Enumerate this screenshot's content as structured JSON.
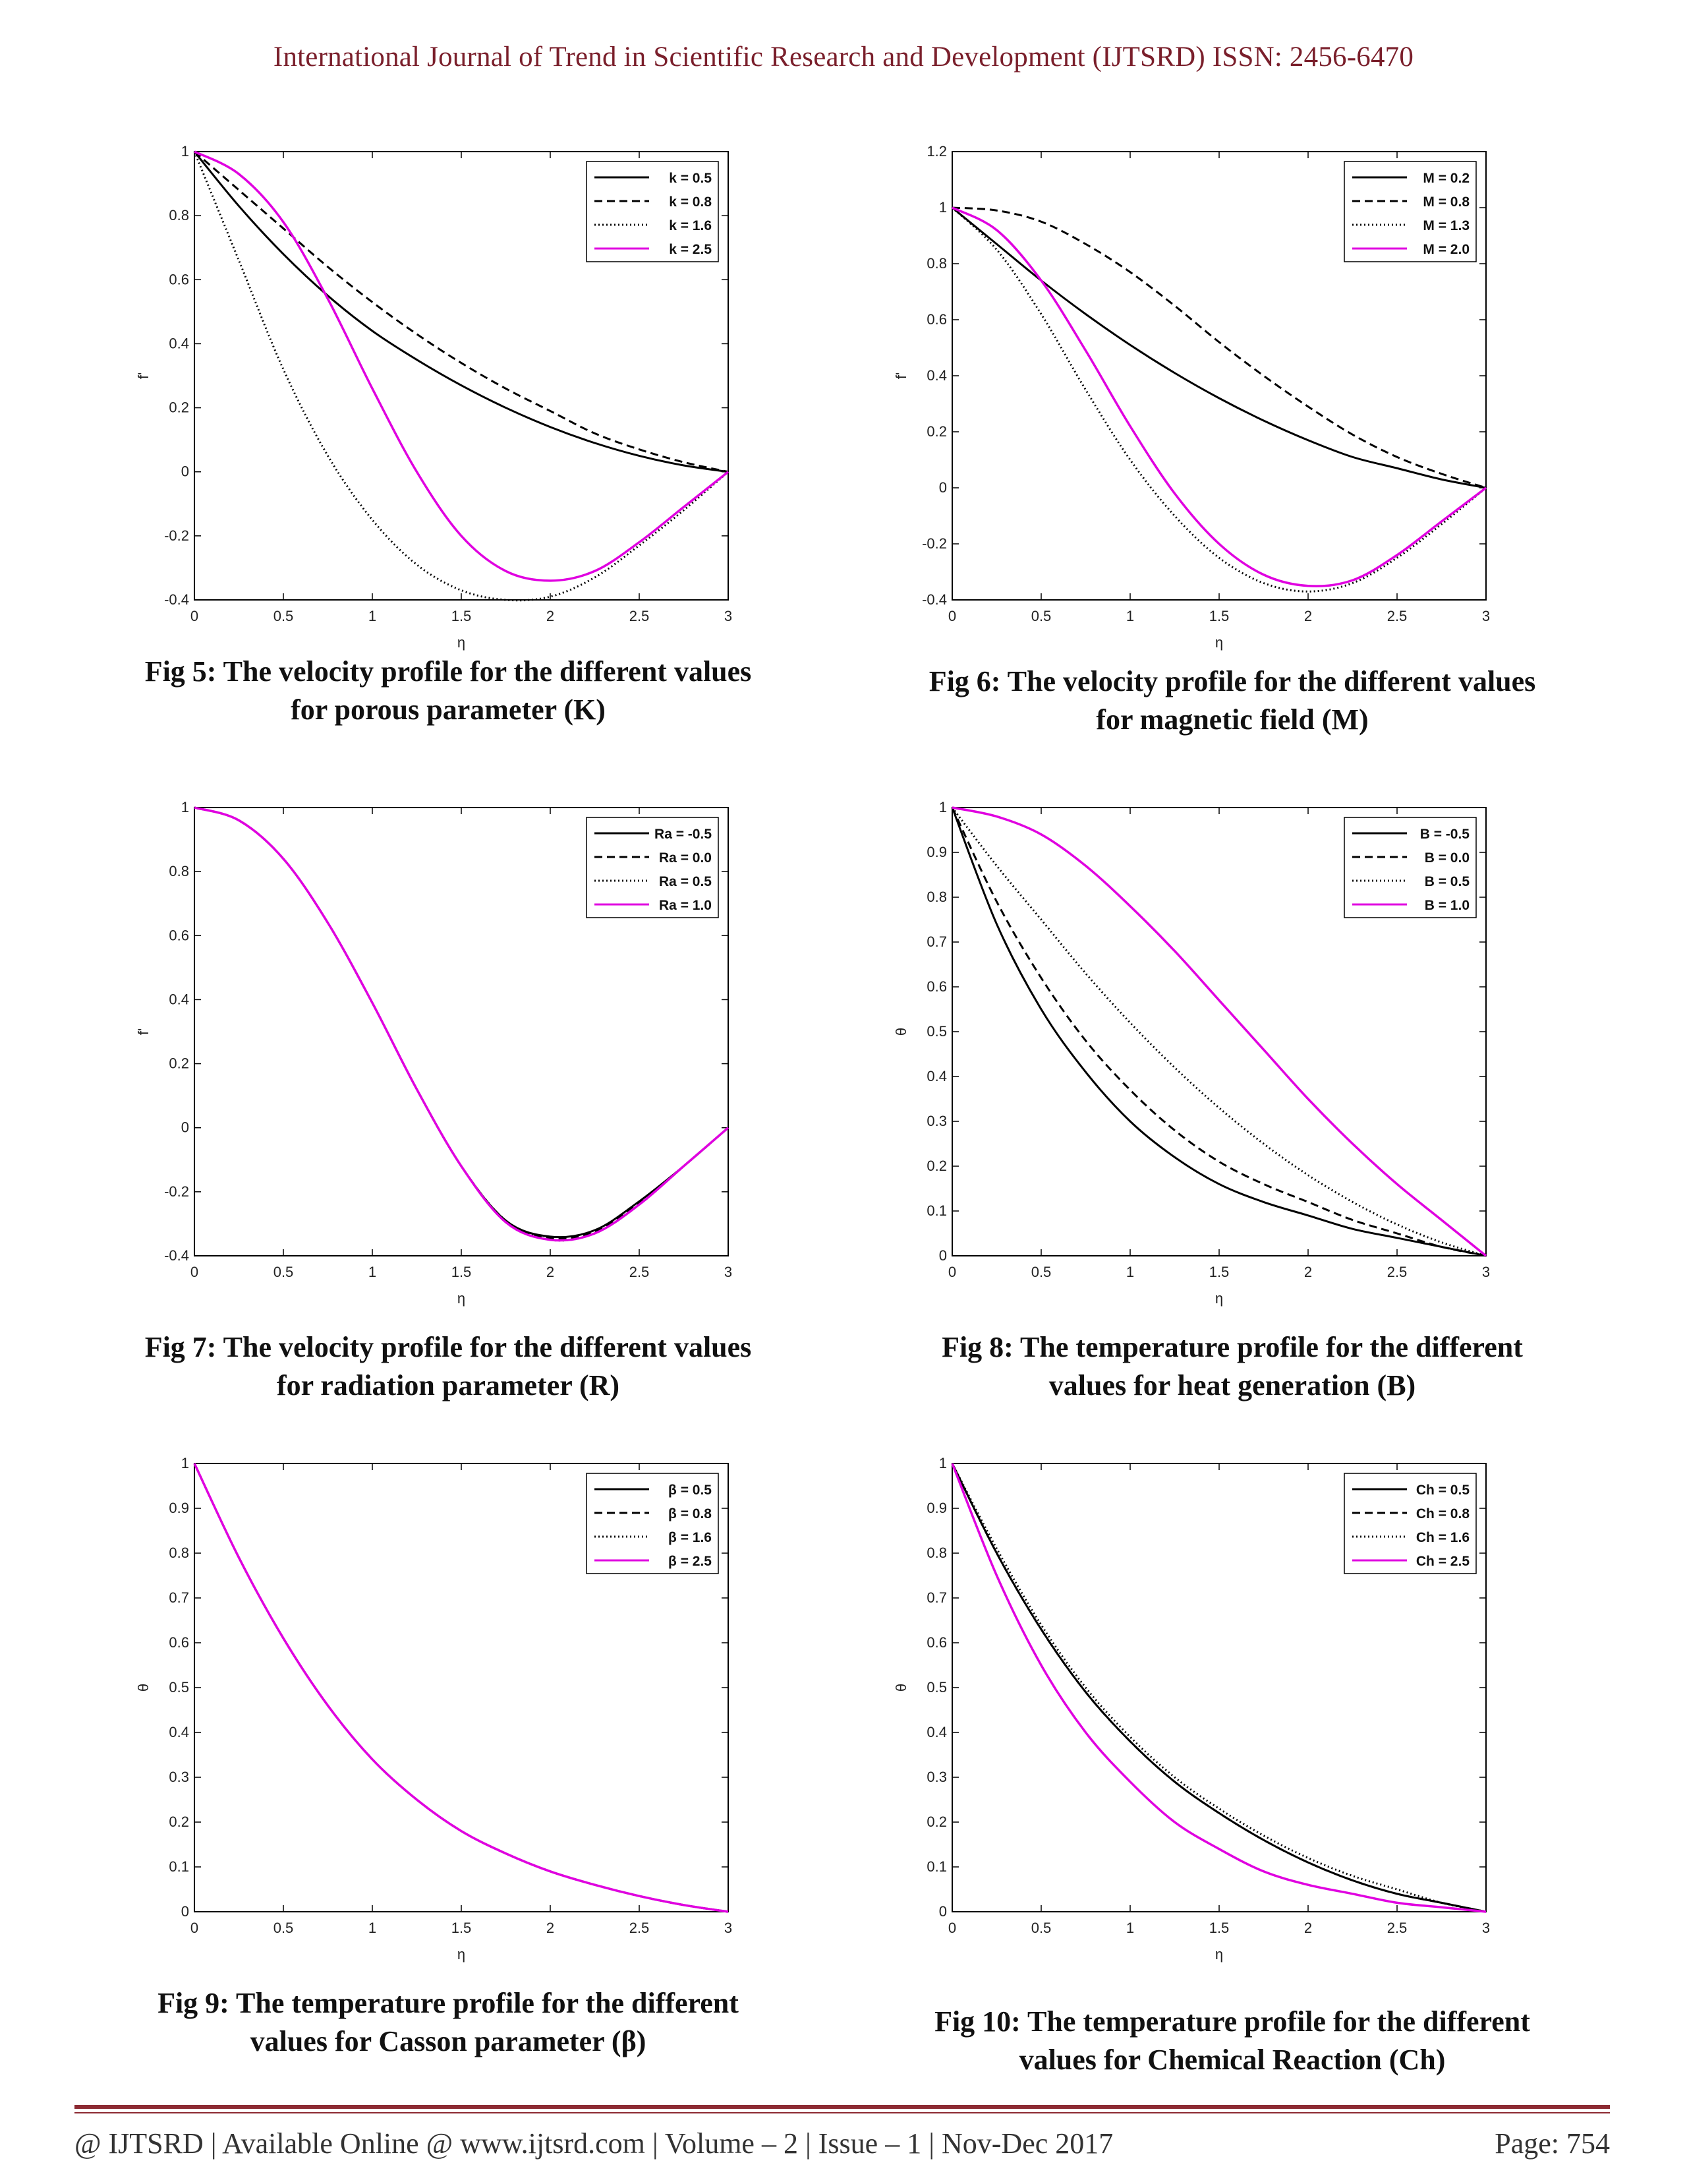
{
  "header": {
    "title": "International Journal of Trend in Scientific Research and Development (IJTSRD) ISSN: 2456-6470"
  },
  "footer": {
    "left": "@ IJTSRD  |  Available Online @ www.ijtsrd.com  |  Volume – 2  |  Issue – 1  | Nov-Dec 2017",
    "right": "Page: 754",
    "rule_color": "#8c2a32"
  },
  "series_styles": [
    {
      "color": "#000000",
      "dash": "none"
    },
    {
      "color": "#000000",
      "dash": "12,7"
    },
    {
      "color": "#000000",
      "dash": "2,4"
    },
    {
      "color": "#e000e0",
      "dash": "none"
    }
  ],
  "figures": [
    {
      "caption": [
        "Fig 5: The velocity profile for the different values",
        "for porous parameter (K)"
      ],
      "chart_data": {
        "type": "line",
        "xlabel": "η",
        "ylabel": "f'",
        "xlim": [
          0,
          3
        ],
        "ylim": [
          -0.4,
          1
        ],
        "xticks": [
          "0",
          "0.5",
          "1",
          "1.5",
          "2",
          "2.5",
          "3"
        ],
        "xtick_values": [
          0,
          0.5,
          1,
          1.5,
          2,
          2.5,
          3
        ],
        "yticks": [
          "-0.4",
          "-0.2",
          "0",
          "0.2",
          "0.4",
          "0.6",
          "0.8",
          "1"
        ],
        "ytick_values": [
          -0.4,
          -0.2,
          0,
          0.2,
          0.4,
          0.6,
          0.8,
          1
        ],
        "legend_position": "top-right",
        "x": [
          0,
          0.25,
          0.5,
          0.75,
          1,
          1.25,
          1.5,
          1.75,
          2,
          2.25,
          2.5,
          2.75,
          3
        ],
        "series": [
          {
            "name": "k =  0.5",
            "values": [
              1.0,
              0.83,
              0.68,
              0.55,
              0.44,
              0.35,
              0.27,
              0.2,
              0.14,
              0.09,
              0.05,
              0.02,
              0.0
            ]
          },
          {
            "name": "k =  0.8",
            "values": [
              1.0,
              0.88,
              0.76,
              0.64,
              0.53,
              0.43,
              0.34,
              0.26,
              0.19,
              0.12,
              0.07,
              0.03,
              0.0
            ]
          },
          {
            "name": "k =  1.6",
            "values": [
              1.0,
              0.66,
              0.32,
              0.05,
              -0.15,
              -0.29,
              -0.37,
              -0.4,
              -0.39,
              -0.33,
              -0.23,
              -0.12,
              0.0
            ]
          },
          {
            "name": "k =  2.5",
            "values": [
              1.0,
              0.93,
              0.78,
              0.54,
              0.26,
              0.0,
              -0.2,
              -0.31,
              -0.34,
              -0.31,
              -0.22,
              -0.11,
              0.0
            ]
          }
        ]
      }
    },
    {
      "caption": [
        "Fig 6: The velocity profile for the different values",
        "for magnetic field (M)"
      ],
      "chart_data": {
        "type": "line",
        "xlabel": "η",
        "ylabel": "f'",
        "xlim": [
          0,
          3
        ],
        "ylim": [
          -0.4,
          1.2
        ],
        "xticks": [
          "0",
          "0.5",
          "1",
          "1.5",
          "2",
          "2.5",
          "3"
        ],
        "xtick_values": [
          0,
          0.5,
          1,
          1.5,
          2,
          2.5,
          3
        ],
        "yticks": [
          "-0.4",
          "-0.2",
          "0",
          "0.2",
          "0.4",
          "0.6",
          "0.8",
          "1",
          "1.2"
        ],
        "ytick_values": [
          -0.4,
          -0.2,
          0,
          0.2,
          0.4,
          0.6,
          0.8,
          1,
          1.2
        ],
        "legend_position": "top-right",
        "x": [
          0,
          0.25,
          0.5,
          0.75,
          1,
          1.25,
          1.5,
          1.75,
          2,
          2.25,
          2.5,
          2.75,
          3
        ],
        "series": [
          {
            "name": "M =  0.2",
            "values": [
              1.0,
              0.87,
              0.74,
              0.62,
              0.51,
              0.41,
              0.32,
              0.24,
              0.17,
              0.11,
              0.07,
              0.03,
              0.0
            ]
          },
          {
            "name": "M =  0.8",
            "values": [
              1.0,
              0.99,
              0.95,
              0.87,
              0.77,
              0.65,
              0.52,
              0.4,
              0.29,
              0.19,
              0.11,
              0.05,
              0.0
            ]
          },
          {
            "name": "M =  1.3",
            "values": [
              1.0,
              0.85,
              0.62,
              0.35,
              0.1,
              -0.1,
              -0.25,
              -0.34,
              -0.37,
              -0.34,
              -0.25,
              -0.13,
              0.0
            ]
          },
          {
            "name": "M =  2.0",
            "values": [
              1.0,
              0.92,
              0.74,
              0.49,
              0.22,
              -0.02,
              -0.2,
              -0.31,
              -0.35,
              -0.33,
              -0.24,
              -0.12,
              0.0
            ]
          }
        ]
      }
    },
    {
      "caption": [
        "Fig 7: The velocity profile for the different values",
        "for radiation parameter (R)"
      ],
      "chart_data": {
        "type": "line",
        "xlabel": "η",
        "ylabel": "f'",
        "xlim": [
          0,
          3
        ],
        "ylim": [
          -0.4,
          1
        ],
        "xticks": [
          "0",
          "0.5",
          "1",
          "1.5",
          "2",
          "2.5",
          "3"
        ],
        "xtick_values": [
          0,
          0.5,
          1,
          1.5,
          2,
          2.5,
          3
        ],
        "yticks": [
          "-0.4",
          "-0.2",
          "0",
          "0.2",
          "0.4",
          "0.6",
          "0.8",
          "1"
        ],
        "ytick_values": [
          -0.4,
          -0.2,
          0,
          0.2,
          0.4,
          0.6,
          0.8,
          1
        ],
        "legend_position": "top-right",
        "x": [
          0,
          0.25,
          0.5,
          0.75,
          1,
          1.25,
          1.5,
          1.75,
          2,
          2.25,
          2.5,
          2.75,
          3
        ],
        "series": [
          {
            "name": "Ra =  -0.5",
            "values": [
              1.0,
              0.96,
              0.84,
              0.64,
              0.39,
              0.12,
              -0.12,
              -0.29,
              -0.34,
              -0.32,
              -0.23,
              -0.12,
              0.0
            ]
          },
          {
            "name": "Ra =  0.0",
            "values": [
              1.0,
              0.96,
              0.84,
              0.64,
              0.39,
              0.12,
              -0.12,
              -0.29,
              -0.345,
              -0.325,
              -0.235,
              -0.12,
              0.0
            ]
          },
          {
            "name": "Ra =  0.5",
            "values": [
              1.0,
              0.96,
              0.84,
              0.64,
              0.39,
              0.12,
              -0.12,
              -0.29,
              -0.35,
              -0.33,
              -0.24,
              -0.12,
              0.0
            ]
          },
          {
            "name": "Ra =  1.0",
            "values": [
              1.0,
              0.96,
              0.84,
              0.64,
              0.39,
              0.12,
              -0.12,
              -0.295,
              -0.35,
              -0.33,
              -0.24,
              -0.12,
              0.0
            ]
          }
        ]
      }
    },
    {
      "caption": [
        "Fig 8: The temperature profile for the different",
        "values for heat generation (B)"
      ],
      "chart_data": {
        "type": "line",
        "xlabel": "η",
        "ylabel": "θ",
        "xlim": [
          0,
          3
        ],
        "ylim": [
          0,
          1
        ],
        "xticks": [
          "0",
          "0.5",
          "1",
          "1.5",
          "2",
          "2.5",
          "3"
        ],
        "xtick_values": [
          0,
          0.5,
          1,
          1.5,
          2,
          2.5,
          3
        ],
        "yticks": [
          "0",
          "0.1",
          "0.2",
          "0.3",
          "0.4",
          "0.5",
          "0.6",
          "0.7",
          "0.8",
          "0.9",
          "1"
        ],
        "ytick_values": [
          0,
          0.1,
          0.2,
          0.3,
          0.4,
          0.5,
          0.6,
          0.7,
          0.8,
          0.9,
          1
        ],
        "legend_position": "top-right",
        "x": [
          0,
          0.25,
          0.5,
          0.75,
          1,
          1.25,
          1.5,
          1.75,
          2,
          2.25,
          2.5,
          2.75,
          3
        ],
        "series": [
          {
            "name": "B =  -0.5",
            "values": [
              1.0,
              0.74,
              0.55,
              0.41,
              0.3,
              0.22,
              0.16,
              0.12,
              0.09,
              0.06,
              0.04,
              0.02,
              0.0
            ]
          },
          {
            "name": "B =  0.0",
            "values": [
              1.0,
              0.79,
              0.62,
              0.48,
              0.37,
              0.28,
              0.21,
              0.16,
              0.12,
              0.08,
              0.05,
              0.02,
              0.0
            ]
          },
          {
            "name": "B =  0.5",
            "values": [
              1.0,
              0.87,
              0.75,
              0.63,
              0.52,
              0.42,
              0.33,
              0.25,
              0.18,
              0.12,
              0.07,
              0.03,
              0.0
            ]
          },
          {
            "name": "B =  1.0",
            "values": [
              1.0,
              0.98,
              0.94,
              0.87,
              0.78,
              0.68,
              0.57,
              0.46,
              0.35,
              0.25,
              0.16,
              0.08,
              0.0
            ]
          }
        ]
      }
    },
    {
      "caption": [
        "Fig 9: The temperature profile for the different",
        "values for Casson parameter (β)"
      ],
      "chart_data": {
        "type": "line",
        "xlabel": "η",
        "ylabel": "θ",
        "xlim": [
          0,
          3
        ],
        "ylim": [
          0,
          1
        ],
        "xticks": [
          "0",
          "0.5",
          "1",
          "1.5",
          "2",
          "2.5",
          "3"
        ],
        "xtick_values": [
          0,
          0.5,
          1,
          1.5,
          2,
          2.5,
          3
        ],
        "yticks": [
          "0",
          "0.1",
          "0.2",
          "0.3",
          "0.4",
          "0.5",
          "0.6",
          "0.7",
          "0.8",
          "0.9",
          "1"
        ],
        "ytick_values": [
          0,
          0.1,
          0.2,
          0.3,
          0.4,
          0.5,
          0.6,
          0.7,
          0.8,
          0.9,
          1
        ],
        "legend_position": "top-right",
        "x": [
          0,
          0.25,
          0.5,
          0.75,
          1,
          1.25,
          1.5,
          1.75,
          2,
          2.25,
          2.5,
          2.75,
          3
        ],
        "series": [
          {
            "name": "β =  0.5",
            "values": [
              1.0,
              0.79,
              0.61,
              0.46,
              0.34,
              0.25,
              0.18,
              0.13,
              0.09,
              0.06,
              0.035,
              0.015,
              0.0
            ]
          },
          {
            "name": "β =  0.8",
            "values": [
              1.0,
              0.79,
              0.61,
              0.46,
              0.34,
              0.25,
              0.18,
              0.13,
              0.09,
              0.06,
              0.035,
              0.015,
              0.0
            ]
          },
          {
            "name": "β =  1.6",
            "values": [
              1.0,
              0.79,
              0.61,
              0.46,
              0.34,
              0.25,
              0.18,
              0.13,
              0.09,
              0.06,
              0.035,
              0.015,
              0.0
            ]
          },
          {
            "name": "β =  2.5",
            "values": [
              1.0,
              0.79,
              0.61,
              0.46,
              0.34,
              0.25,
              0.18,
              0.13,
              0.09,
              0.06,
              0.035,
              0.015,
              0.0
            ]
          }
        ]
      }
    },
    {
      "caption": [
        "Fig 10: The temperature profile for the different",
        "values for Chemical Reaction (Ch)"
      ],
      "chart_data": {
        "type": "line",
        "xlabel": "η",
        "ylabel": "θ",
        "xlim": [
          0,
          3
        ],
        "ylim": [
          0,
          1
        ],
        "xticks": [
          "0",
          "0.5",
          "1",
          "1.5",
          "2",
          "2.5",
          "3"
        ],
        "xtick_values": [
          0,
          0.5,
          1,
          1.5,
          2,
          2.5,
          3
        ],
        "yticks": [
          "0",
          "0.1",
          "0.2",
          "0.3",
          "0.4",
          "0.5",
          "0.6",
          "0.7",
          "0.8",
          "0.9",
          "1"
        ],
        "ytick_values": [
          0,
          0.1,
          0.2,
          0.3,
          0.4,
          0.5,
          0.6,
          0.7,
          0.8,
          0.9,
          1
        ],
        "legend_position": "top-right",
        "x": [
          0,
          0.25,
          0.5,
          0.75,
          1,
          1.25,
          1.5,
          1.75,
          2,
          2.25,
          2.5,
          2.75,
          3
        ],
        "series": [
          {
            "name": "Ch =  0.5",
            "values": [
              1.0,
              0.8,
              0.63,
              0.49,
              0.38,
              0.29,
              0.22,
              0.16,
              0.11,
              0.07,
              0.04,
              0.02,
              0.0
            ]
          },
          {
            "name": "Ch =  0.8",
            "values": [
              1.0,
              0.8,
              0.63,
              0.49,
              0.38,
              0.29,
              0.22,
              0.16,
              0.11,
              0.07,
              0.04,
              0.02,
              0.0
            ]
          },
          {
            "name": "Ch =  1.6",
            "values": [
              1.0,
              0.81,
              0.64,
              0.5,
              0.39,
              0.3,
              0.23,
              0.17,
              0.12,
              0.08,
              0.05,
              0.02,
              0.0
            ]
          },
          {
            "name": "Ch =  2.5",
            "values": [
              1.0,
              0.75,
              0.55,
              0.4,
              0.29,
              0.2,
              0.14,
              0.09,
              0.06,
              0.04,
              0.02,
              0.01,
              0.0
            ]
          }
        ]
      }
    }
  ]
}
